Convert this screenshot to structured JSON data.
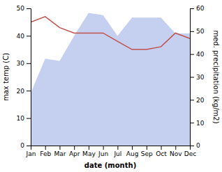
{
  "chart_data": {
    "type": "line",
    "xlabel": "date (month)",
    "ylabel": "max temp (C)",
    "y2label": "med. precipitation (kg/m2)",
    "categories": [
      "Jan",
      "Feb",
      "Mar",
      "Apr",
      "May",
      "Jun",
      "Jul",
      "Aug",
      "Sep",
      "Oct",
      "Nov",
      "Dec"
    ],
    "series": [
      {
        "type": "area",
        "axis": "y2",
        "color": "#c5d0f0",
        "values": [
          23,
          38,
          37,
          48,
          58,
          57,
          48,
          56,
          56,
          56,
          49,
          49
        ]
      },
      {
        "type": "line",
        "color": "#c0504d",
        "values": [
          45,
          47,
          43,
          41,
          41,
          41,
          38,
          35,
          35,
          36,
          41,
          39
        ]
      }
    ],
    "ylim": [
      0,
      50
    ],
    "yticks": [
      0,
      10,
      20,
      30,
      40,
      50
    ],
    "y2lim": [
      0,
      60
    ],
    "y2ticks": [
      0,
      10,
      20,
      30,
      40,
      50,
      60
    ]
  }
}
